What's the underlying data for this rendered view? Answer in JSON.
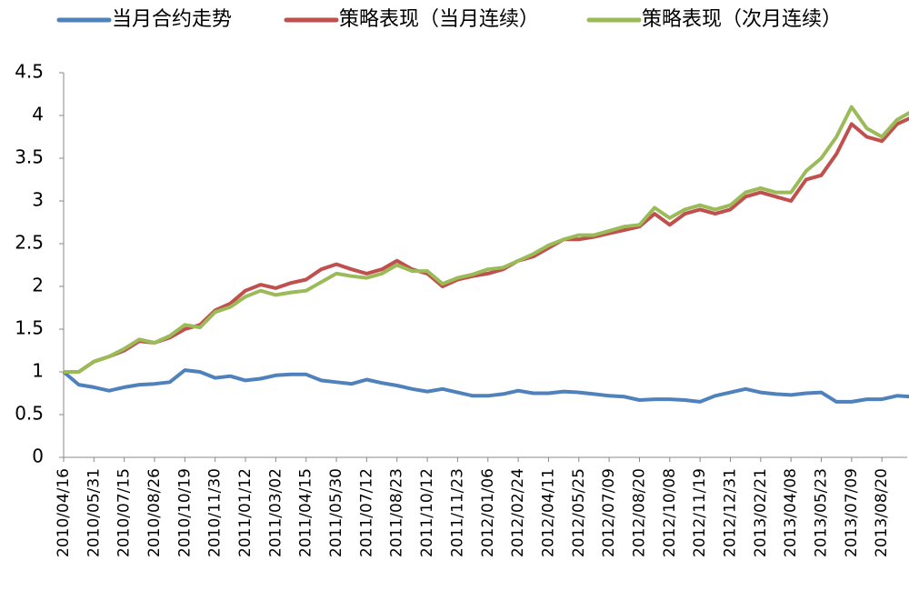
{
  "chart_data": {
    "type": "line",
    "categories": [
      "2010/04/16",
      null,
      "2010/05/31",
      null,
      "2010/07/15",
      null,
      "2010/08/26",
      null,
      "2010/10/19",
      null,
      "2010/11/30",
      null,
      "2011/01/12",
      null,
      "2011/03/02",
      null,
      "2011/04/15",
      null,
      "2011/05/30",
      null,
      "2011/07/12",
      null,
      "2011/08/23",
      null,
      "2011/10/12",
      null,
      "2011/11/23",
      null,
      "2012/01/06",
      null,
      "2012/02/24",
      null,
      "2012/04/11",
      null,
      "2012/05/25",
      null,
      "2012/07/09",
      null,
      "2012/08/20",
      null,
      "2012/10/08",
      null,
      "2012/11/19",
      null,
      "2012/12/31",
      null,
      "2013/02/21",
      null,
      "2013/04/08",
      null,
      "2013/05/23",
      null,
      "2013/07/09",
      null,
      "2013/08/20",
      null,
      null
    ],
    "series": [
      {
        "name": "当月合约走势",
        "color": "#4f81bd",
        "values": [
          1.0,
          0.85,
          0.82,
          0.78,
          0.82,
          0.85,
          0.86,
          0.88,
          1.02,
          1.0,
          0.93,
          0.95,
          0.9,
          0.92,
          0.96,
          0.97,
          0.97,
          0.9,
          0.88,
          0.86,
          0.91,
          0.87,
          0.84,
          0.8,
          0.77,
          0.8,
          0.76,
          0.72,
          0.72,
          0.74,
          0.78,
          0.75,
          0.75,
          0.77,
          0.76,
          0.74,
          0.72,
          0.71,
          0.67,
          0.68,
          0.68,
          0.67,
          0.65,
          0.72,
          0.76,
          0.8,
          0.76,
          0.74,
          0.73,
          0.75,
          0.76,
          0.65,
          0.65,
          0.68,
          0.68,
          0.72,
          0.71
        ]
      },
      {
        "name": "策略表现（当月连续）",
        "color": "#c0504d",
        "values": [
          1.0,
          1.0,
          1.12,
          1.18,
          1.25,
          1.36,
          1.34,
          1.4,
          1.5,
          1.55,
          1.72,
          1.8,
          1.95,
          2.02,
          1.98,
          2.04,
          2.08,
          2.2,
          2.26,
          2.2,
          2.15,
          2.2,
          2.3,
          2.2,
          2.15,
          2.0,
          2.08,
          2.12,
          2.15,
          2.2,
          2.3,
          2.35,
          2.45,
          2.55,
          2.55,
          2.58,
          2.62,
          2.66,
          2.7,
          2.85,
          2.72,
          2.85,
          2.9,
          2.85,
          2.9,
          3.05,
          3.1,
          3.05,
          3.0,
          3.25,
          3.3,
          3.55,
          3.9,
          3.75,
          3.7,
          3.9,
          3.98
        ]
      },
      {
        "name": "策略表现（次月连续）",
        "color": "#9bbb59",
        "values": [
          1.0,
          1.0,
          1.12,
          1.18,
          1.27,
          1.38,
          1.34,
          1.42,
          1.55,
          1.52,
          1.7,
          1.76,
          1.88,
          1.95,
          1.9,
          1.93,
          1.95,
          2.05,
          2.15,
          2.12,
          2.1,
          2.15,
          2.25,
          2.18,
          2.18,
          2.03,
          2.1,
          2.14,
          2.2,
          2.22,
          2.3,
          2.38,
          2.48,
          2.55,
          2.6,
          2.6,
          2.65,
          2.7,
          2.72,
          2.92,
          2.8,
          2.9,
          2.95,
          2.9,
          2.95,
          3.1,
          3.15,
          3.1,
          3.1,
          3.35,
          3.5,
          3.75,
          4.1,
          3.85,
          3.75,
          3.95,
          4.05
        ]
      }
    ],
    "ylim": [
      0,
      4.5
    ],
    "yticks": [
      0,
      0.5,
      1,
      1.5,
      2,
      2.5,
      3,
      3.5,
      4,
      4.5
    ],
    "grid": false,
    "legend": "top"
  }
}
